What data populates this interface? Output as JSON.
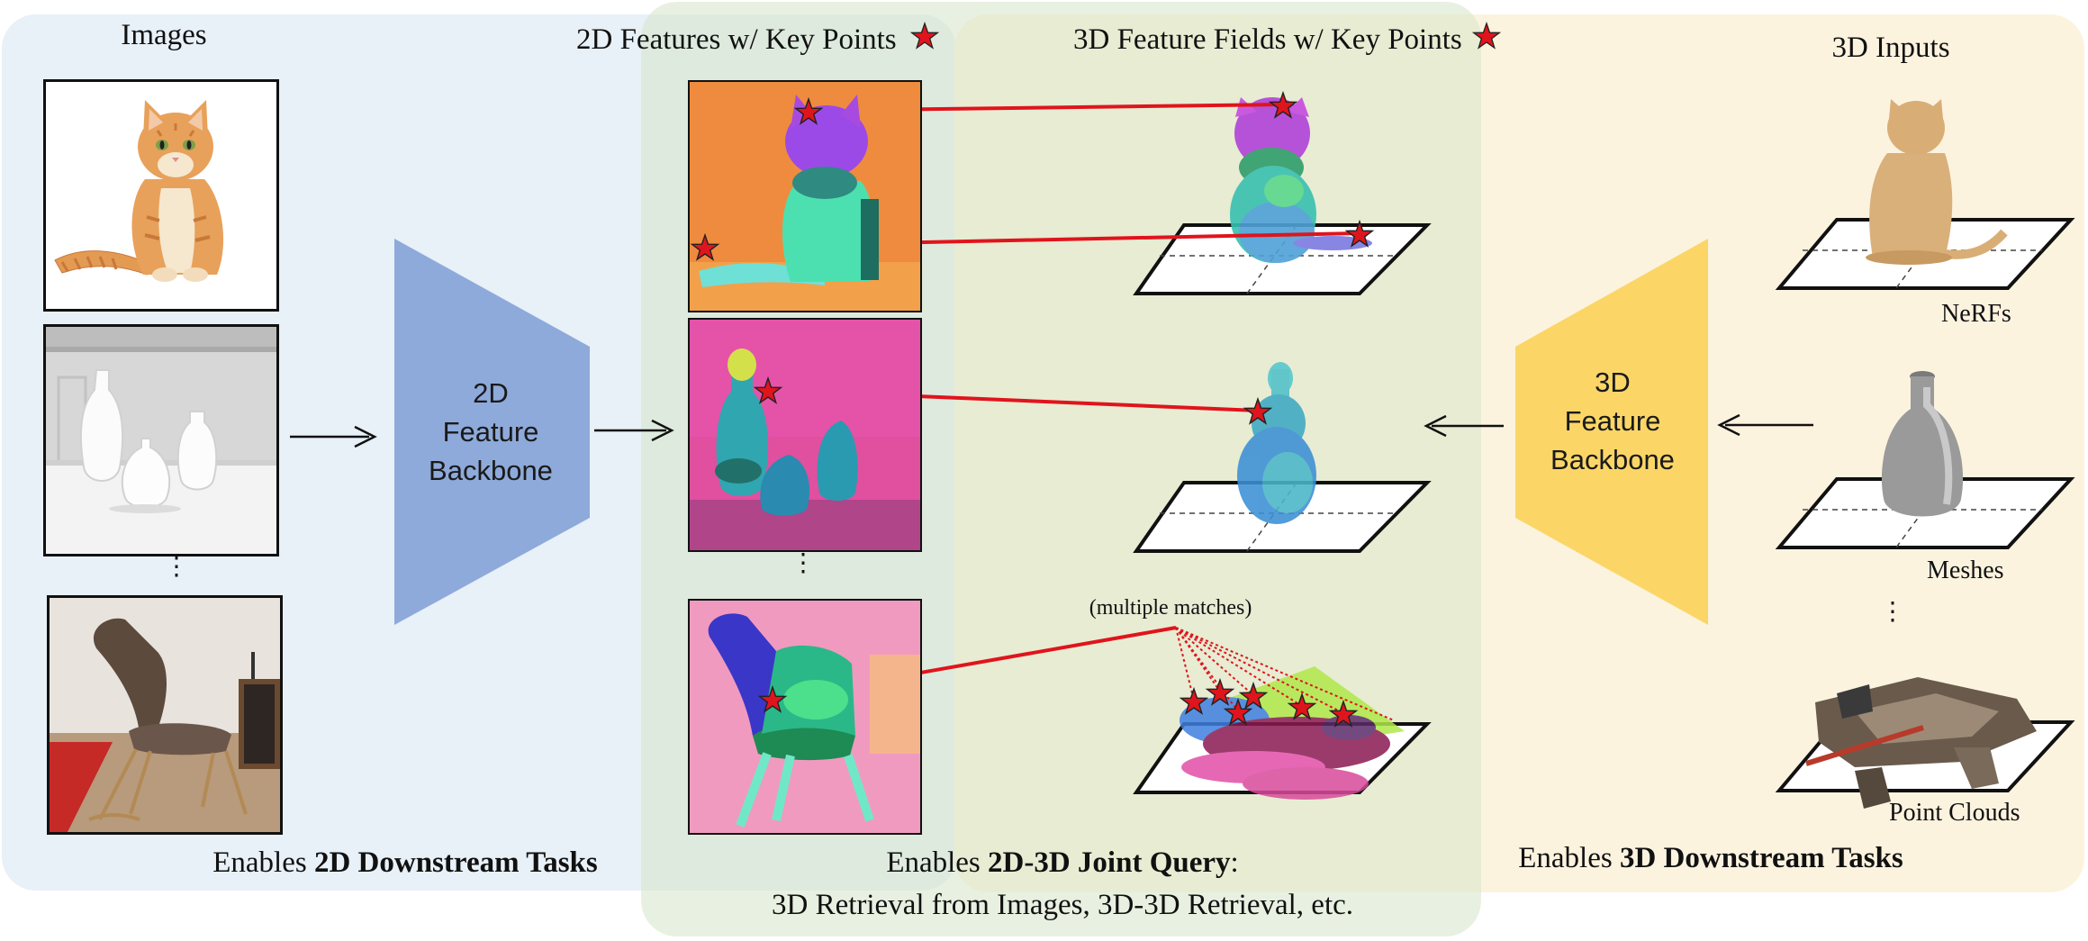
{
  "headers": {
    "images": "Images",
    "features_2d": "2D Features w/ Key Points",
    "fields_3d": "3D Feature Fields w/ Key Points",
    "inputs_3d": "3D Inputs"
  },
  "backbones": {
    "b2d": [
      "2D",
      "Feature",
      "Backbone"
    ],
    "b3d": [
      "3D",
      "Feature",
      "Backbone"
    ]
  },
  "input_labels": {
    "nerfs": "NeRFs",
    "meshes": "Meshes",
    "point_clouds": "Point Clouds"
  },
  "annotations": {
    "multiple_matches": "(multiple matches)",
    "ellipsis": "⋮"
  },
  "footers": {
    "left_prefix": "Enables ",
    "left_bold": "2D Downstream Tasks",
    "center_prefix": "Enables ",
    "center_bold": "2D-3D Joint Query",
    "center_suffix": ":",
    "center_line2": "3D Retrieval from Images, 3D-3D Retrieval, etc.",
    "right_prefix": "Enables ",
    "right_bold": "3D Downstream Tasks"
  },
  "colors": {
    "panel_left": "#e8f0f8",
    "panel_right": "#fcf3df",
    "panel_center": "#d6e6c8",
    "backbone_2d": "#8eaadb",
    "backbone_3d": "#fbd667",
    "match_line": "#e0141c",
    "star_fill": "#e0141c"
  },
  "icons": [
    "star-icon",
    "arrow-right-icon",
    "arrow-left-icon"
  ]
}
